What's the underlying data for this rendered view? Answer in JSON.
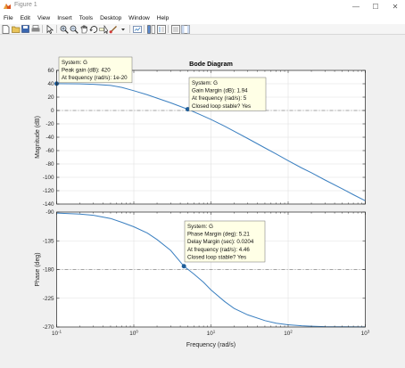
{
  "window": {
    "title": "Figure 1",
    "min_glyph": "—",
    "max_glyph": "☐",
    "close_glyph": "✕"
  },
  "menu": [
    "File",
    "Edit",
    "View",
    "Insert",
    "Tools",
    "Desktop",
    "Window",
    "Help"
  ],
  "toolbar": {
    "icons": [
      "new-figure-icon",
      "open-file-icon",
      "save-icon",
      "print-icon",
      "edit-plot-arrow-icon",
      "zoom-in-icon",
      "zoom-out-icon",
      "pan-icon",
      "rotate-3d-icon",
      "data-cursor-icon",
      "brush-icon",
      "dropdown-arrow-icon",
      "link-plot-icon",
      "insert-colorbar-icon",
      "insert-legend-icon",
      "hide-plot-tools-icon",
      "show-plot-tools-icon"
    ]
  },
  "colors": {
    "line": "#3a7fc0",
    "marker": "#1f5e9a",
    "grid": "#e0e0e0",
    "refline": "#8a8a8a",
    "datatip_bg": "#ffffe6"
  },
  "chart_data": {
    "type": "line",
    "title": "Bode Diagram",
    "xlabel": "Frequency  (rad/s)",
    "xscale": "log",
    "xlim": [
      0.1,
      1000
    ],
    "xticks": [
      {
        "v": 0.1,
        "b": "10",
        "e": "-1"
      },
      {
        "v": 1,
        "b": "10",
        "e": "0"
      },
      {
        "v": 10,
        "b": "10",
        "e": "1"
      },
      {
        "v": 100,
        "b": "10",
        "e": "2"
      },
      {
        "v": 1000,
        "b": "10",
        "e": "3"
      }
    ],
    "magnitude": {
      "ylabel": "Magnitude (dB)",
      "ylim": [
        -140,
        60
      ],
      "yticks": [
        "60",
        "40",
        "20",
        "0",
        "-20",
        "-40",
        "-60",
        "-80",
        "-100",
        "-120",
        "-140"
      ],
      "reference_line": 0,
      "points": [
        [
          0.1,
          40.2
        ],
        [
          0.2,
          39.9
        ],
        [
          0.3,
          39.2
        ],
        [
          0.5,
          37.4
        ],
        [
          0.7,
          34.5
        ],
        [
          1,
          29.6
        ],
        [
          1.5,
          23.5
        ],
        [
          2,
          18.5
        ],
        [
          3,
          11.5
        ],
        [
          5,
          1.9
        ],
        [
          7,
          -5.5
        ],
        [
          10,
          -13.5
        ],
        [
          15,
          -23.5
        ],
        [
          20,
          -31
        ],
        [
          30,
          -42
        ],
        [
          50,
          -56
        ],
        [
          70,
          -65
        ],
        [
          100,
          -75
        ],
        [
          150,
          -86
        ],
        [
          200,
          -93
        ],
        [
          300,
          -104
        ],
        [
          500,
          -117
        ],
        [
          700,
          -126
        ],
        [
          1000,
          -135
        ]
      ],
      "marker_points": [
        [
          0.1,
          40.2
        ],
        [
          5,
          1.9
        ]
      ]
    },
    "phase": {
      "ylabel": "Phase (deg)",
      "ylim": [
        -270,
        -90
      ],
      "yticks": [
        "-90",
        "-135",
        "-180",
        "-225",
        "-270"
      ],
      "reference_line": -180,
      "points": [
        [
          0.1,
          -91.5
        ],
        [
          0.2,
          -93
        ],
        [
          0.3,
          -95
        ],
        [
          0.5,
          -100
        ],
        [
          0.7,
          -106
        ],
        [
          1,
          -113
        ],
        [
          1.5,
          -123
        ],
        [
          2,
          -133
        ],
        [
          3,
          -150
        ],
        [
          4.46,
          -174.8
        ],
        [
          6,
          -187
        ],
        [
          8,
          -200
        ],
        [
          10,
          -212
        ],
        [
          15,
          -230
        ],
        [
          20,
          -241
        ],
        [
          30,
          -251
        ],
        [
          50,
          -260
        ],
        [
          70,
          -264
        ],
        [
          100,
          -266.5
        ],
        [
          150,
          -268
        ],
        [
          200,
          -268.8
        ],
        [
          300,
          -269.4
        ],
        [
          500,
          -269.7
        ],
        [
          1000,
          -269.9
        ]
      ],
      "marker_points": [
        [
          4.46,
          -174.8
        ]
      ]
    },
    "datatips": {
      "peak": [
        "System: G",
        "Peak gain (dB): 420",
        "At frequency (rad/s): 1e-20"
      ],
      "gain_margin": [
        "System: G",
        "Gain Margin (dB): 1.94",
        "At frequency (rad/s): 5",
        "Closed loop stable? Yes"
      ],
      "phase_margin": [
        "System: G",
        "Phase Margin (deg): 5.21",
        "Delay Margin (sec): 0.0204",
        "At frequency (rad/s): 4.46",
        "Closed loop stable? Yes"
      ]
    }
  }
}
